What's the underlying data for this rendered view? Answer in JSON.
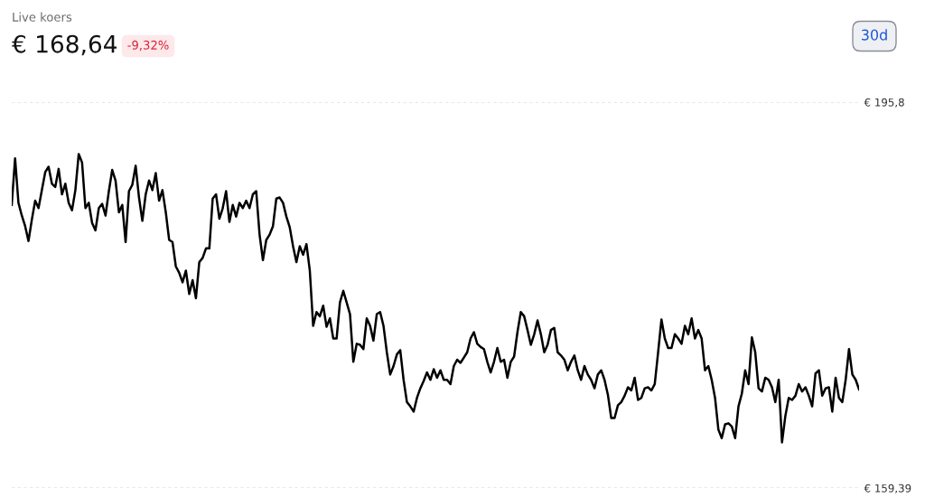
{
  "chart_data": {
    "type": "line",
    "title": "Live koers",
    "annotations": [
      "€ 168,64",
      "-9,32%",
      "30d"
    ],
    "categories": [
      null,
      null,
      null,
      null,
      null,
      null,
      null,
      null,
      null,
      null,
      null,
      null,
      null,
      null,
      null,
      null,
      null,
      null,
      null,
      null,
      null,
      null,
      null,
      null,
      null,
      null,
      null,
      null,
      null,
      null,
      null,
      null,
      null,
      null,
      null,
      null,
      null,
      null,
      null,
      null,
      null,
      null,
      null,
      null,
      null,
      null,
      null,
      null,
      null,
      null,
      null,
      null,
      null,
      null,
      null,
      null,
      null,
      null,
      null,
      null,
      null,
      null,
      null,
      null,
      null,
      null,
      null,
      null,
      null,
      null,
      null,
      null,
      null,
      null,
      null,
      null,
      null,
      null,
      null,
      null,
      null,
      null,
      null,
      null,
      null,
      null,
      null,
      null,
      null,
      null,
      null,
      null,
      null,
      null,
      null,
      null,
      null,
      null,
      null,
      null,
      null,
      null,
      null,
      null,
      null,
      null,
      null,
      null,
      null,
      null,
      null,
      null,
      null,
      null,
      null,
      null,
      null,
      null,
      null,
      null,
      null,
      null,
      null,
      null,
      null,
      null,
      null,
      null,
      null,
      null,
      null,
      null,
      null,
      null,
      null,
      null,
      null,
      null,
      null,
      null,
      null,
      null,
      null,
      null,
      null,
      null,
      null,
      null,
      null,
      null,
      null,
      null,
      null,
      null,
      null,
      null,
      null,
      null,
      null,
      null,
      null,
      null,
      null,
      null,
      null,
      null,
      null,
      null,
      null,
      null,
      null,
      null,
      null,
      null,
      null,
      null,
      null,
      null,
      null,
      null,
      null,
      null,
      null,
      null,
      null,
      null,
      null,
      null,
      null,
      null,
      null,
      null,
      null,
      null,
      null,
      null,
      null,
      null,
      null,
      null,
      null,
      null,
      null,
      null,
      null,
      null,
      null,
      null,
      null,
      null,
      null,
      null,
      null,
      null,
      null,
      null,
      null,
      null,
      null,
      null,
      null,
      null,
      null,
      null,
      null,
      null,
      null,
      null,
      null,
      null,
      null,
      null,
      null,
      null,
      null,
      null,
      null,
      null,
      null,
      null,
      null,
      null,
      null,
      null,
      null,
      null,
      null,
      null,
      null,
      null,
      null,
      null,
      null,
      null
    ],
    "series": [
      {
        "color": "#000000",
        "values": [
          186.1,
          190.5,
          186.3,
          185.1,
          184.1,
          182.7,
          184.7,
          186.5,
          185.8,
          187.5,
          189.2,
          189.7,
          188.1,
          187.8,
          189.5,
          187.1,
          188.1,
          186.3,
          185.6,
          187.5,
          190.9,
          190.1,
          185.8,
          186.3,
          184.4,
          183.7,
          185.8,
          186.2,
          185.1,
          187.4,
          189.4,
          188.4,
          185.4,
          186.1,
          182.6,
          187.4,
          188.0,
          189.8,
          186.8,
          184.6,
          187.1,
          188.4,
          187.5,
          189.1,
          186.5,
          187.5,
          185.4,
          182.8,
          182.6,
          180.3,
          179.7,
          178.8,
          179.9,
          177.7,
          179.0,
          177.3,
          180.7,
          181.1,
          182.0,
          182.0,
          186.7,
          187.1,
          184.8,
          185.8,
          187.4,
          184.5,
          186.1,
          185.0,
          186.3,
          185.8,
          186.5,
          185.8,
          187.1,
          187.4,
          183.3,
          180.9,
          182.8,
          183.3,
          184.1,
          186.7,
          186.8,
          186.3,
          185.0,
          184.0,
          182.2,
          180.7,
          182.2,
          181.4,
          182.4,
          179.9,
          174.7,
          176.0,
          175.6,
          176.6,
          174.6,
          175.4,
          173.5,
          173.5,
          176.9,
          178.0,
          176.9,
          175.8,
          171.3,
          173.0,
          172.9,
          172.5,
          175.4,
          174.7,
          173.3,
          175.8,
          176.0,
          174.7,
          172.2,
          170.1,
          170.9,
          172.0,
          172.4,
          169.6,
          167.5,
          167.1,
          166.6,
          167.9,
          168.8,
          169.5,
          170.3,
          169.6,
          170.6,
          169.8,
          170.5,
          169.6,
          169.6,
          169.2,
          170.9,
          171.5,
          171.2,
          171.7,
          172.2,
          173.5,
          174.1,
          173.0,
          172.7,
          172.5,
          171.3,
          170.3,
          171.3,
          172.6,
          171.3,
          171.5,
          169.8,
          171.3,
          171.8,
          174.1,
          176.0,
          175.6,
          174.3,
          172.9,
          173.9,
          175.2,
          173.9,
          172.2,
          172.9,
          174.3,
          174.5,
          172.2,
          171.9,
          171.5,
          170.5,
          171.3,
          171.9,
          170.5,
          169.6,
          170.9,
          170.1,
          169.6,
          168.8,
          170.1,
          170.5,
          169.6,
          168.2,
          166.0,
          166.0,
          167.2,
          167.5,
          168.1,
          168.9,
          168.6,
          169.8,
          167.7,
          167.9,
          168.8,
          168.9,
          168.6,
          169.2,
          172.2,
          175.3,
          173.5,
          172.6,
          172.6,
          173.9,
          173.5,
          173.0,
          174.7,
          173.9,
          175.4,
          173.5,
          174.3,
          173.5,
          170.5,
          170.9,
          169.6,
          167.9,
          164.9,
          164.1,
          165.4,
          165.5,
          165.2,
          164.1,
          167.1,
          168.3,
          170.5,
          169.2,
          173.6,
          172.2,
          168.8,
          168.5,
          169.8,
          169.6,
          168.9,
          167.5,
          169.6,
          163.7,
          166.2,
          167.9,
          167.7,
          168.1,
          169.2,
          168.5,
          168.9,
          168.1,
          167.1,
          170.2,
          170.5,
          168.1,
          168.8,
          168.9,
          166.6,
          169.8,
          167.9,
          167.5,
          169.6,
          172.5,
          170.1,
          169.6,
          168.7
        ]
      }
    ],
    "ylim": [
      159.39,
      195.8
    ],
    "yticks": [
      {
        "value": 159.39,
        "label": "€ 159,39"
      },
      {
        "value": 195.8,
        "label": "€ 195,8"
      }
    ],
    "grid": "y",
    "line_style": "solid",
    "marker": "none"
  }
}
